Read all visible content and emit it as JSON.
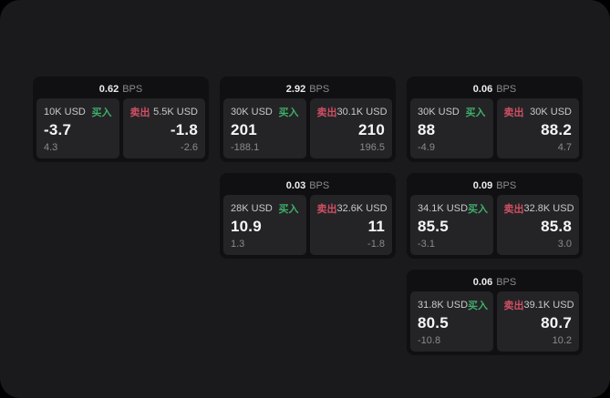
{
  "colors": {
    "buy_green": "#3fae68",
    "sell_red": "#d04f63",
    "canvas_bg": "#1a1a1c",
    "card_bg": "#101012",
    "panel_bg": "#242427"
  },
  "cards": [
    {
      "grid": {
        "row": 1,
        "col": 1
      },
      "bps_value": "0.62",
      "bps_unit": "BPS",
      "buy": {
        "amount": "10K USD",
        "side_label": "买入",
        "value": "-3.7",
        "sub": "4.3"
      },
      "sell": {
        "side_label": "卖出",
        "amount": "5.5K USD",
        "value": "-1.8",
        "sub": "-2.6"
      }
    },
    {
      "grid": {
        "row": 1,
        "col": 2
      },
      "bps_value": "2.92",
      "bps_unit": "BPS",
      "buy": {
        "amount": "30K USD",
        "side_label": "买入",
        "value": "201",
        "sub": "-188.1"
      },
      "sell": {
        "side_label": "卖出",
        "amount": "30.1K USD",
        "value": "210",
        "sub": "196.5"
      }
    },
    {
      "grid": {
        "row": 1,
        "col": 3
      },
      "bps_value": "0.06",
      "bps_unit": "BPS",
      "buy": {
        "amount": "30K USD",
        "side_label": "买入",
        "value": "88",
        "sub": "-4.9"
      },
      "sell": {
        "side_label": "卖出",
        "amount": "30K USD",
        "value": "88.2",
        "sub": "4.7"
      }
    },
    {
      "grid": {
        "row": 2,
        "col": 2
      },
      "bps_value": "0.03",
      "bps_unit": "BPS",
      "buy": {
        "amount": "28K USD",
        "side_label": "买入",
        "value": "10.9",
        "sub": "1.3"
      },
      "sell": {
        "side_label": "卖出",
        "amount": "32.6K USD",
        "value": "11",
        "sub": "-1.8"
      }
    },
    {
      "grid": {
        "row": 2,
        "col": 3
      },
      "bps_value": "0.09",
      "bps_unit": "BPS",
      "buy": {
        "amount": "34.1K USD",
        "side_label": "买入",
        "value": "85.5",
        "sub": "-3.1"
      },
      "sell": {
        "side_label": "卖出",
        "amount": "32.8K USD",
        "value": "85.8",
        "sub": "3.0"
      }
    },
    {
      "grid": {
        "row": 3,
        "col": 3
      },
      "bps_value": "0.06",
      "bps_unit": "BPS",
      "buy": {
        "amount": "31.8K USD",
        "side_label": "买入",
        "value": "80.5",
        "sub": "-10.8"
      },
      "sell": {
        "side_label": "卖出",
        "amount": "39.1K USD",
        "value": "80.7",
        "sub": "10.2"
      }
    }
  ]
}
